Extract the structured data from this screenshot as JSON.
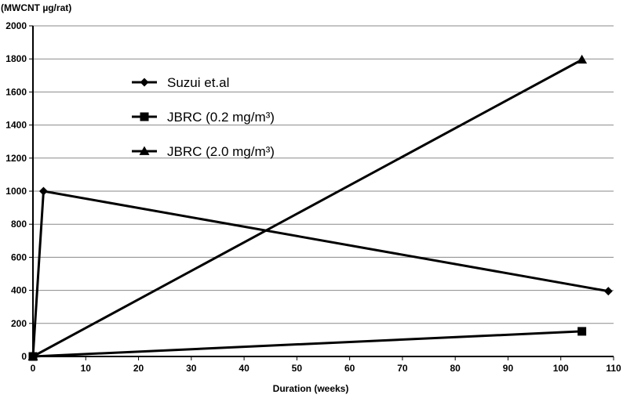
{
  "chart_data": {
    "type": "line",
    "title": "",
    "ylabel": "(MWCNT µg/rat)",
    "xlabel": "Duration (weeks)",
    "xlim": [
      0,
      110
    ],
    "ylim": [
      0,
      2000
    ],
    "x_ticks": [
      "0",
      "10",
      "20",
      "30",
      "40",
      "50",
      "60",
      "70",
      "80",
      "90",
      "100",
      "110"
    ],
    "y_ticks": [
      "0",
      "200",
      "400",
      "600",
      "800",
      "1000",
      "1200",
      "1400",
      "1600",
      "1800",
      "2000"
    ],
    "grid": true,
    "legend_position": "top-left",
    "series": [
      {
        "name": "Suzui et.al",
        "marker": "diamond",
        "x": [
          0,
          2,
          109
        ],
        "y": [
          0,
          1000,
          395
        ]
      },
      {
        "name": "JBRC (0.2 mg/m³)",
        "marker": "square",
        "x": [
          0,
          104
        ],
        "y": [
          0,
          152
        ]
      },
      {
        "name": "JBRC (2.0 mg/m³)",
        "marker": "triangle",
        "x": [
          0,
          104
        ],
        "y": [
          0,
          1795
        ]
      }
    ],
    "colors": {
      "series": "#000000",
      "grid": "#8a8a8a"
    }
  }
}
